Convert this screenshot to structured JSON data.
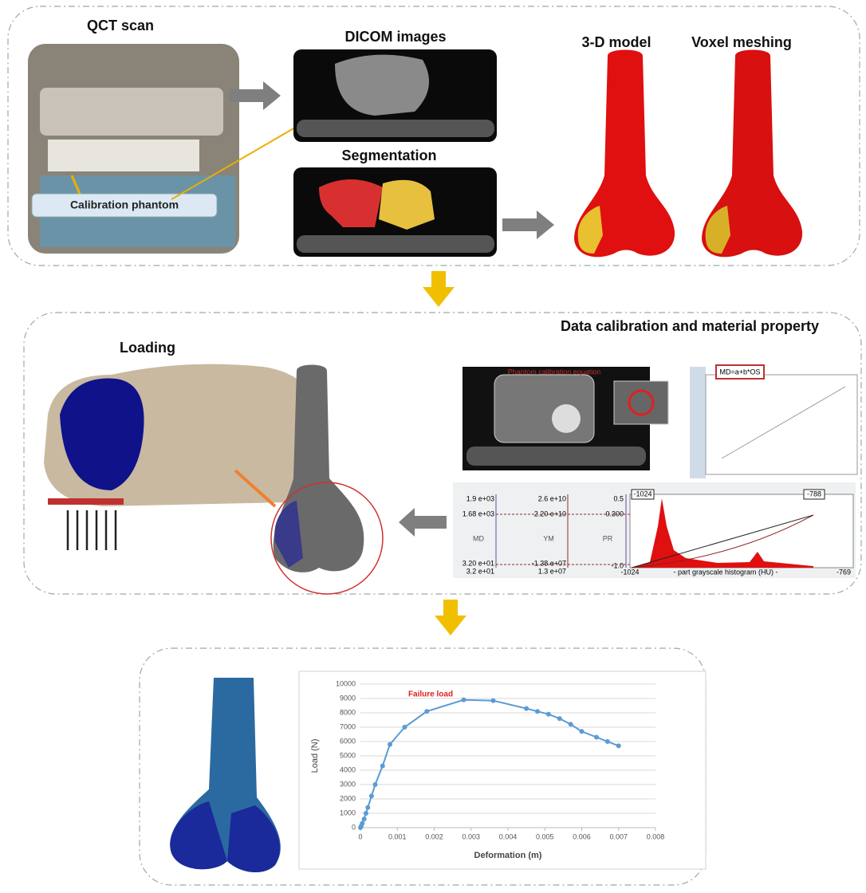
{
  "panel1": {
    "qct_scan": "QCT scan",
    "calibration_phantom": "Calibration phantom",
    "dicom_images": "DICOM images",
    "segmentation": "Segmentation",
    "model_3d": "3-D model",
    "voxel_meshing": "Voxel meshing"
  },
  "panel2": {
    "title": "Data calibration and material property",
    "loading": "Loading",
    "phantom_equation_label": "Phantom calibration equation",
    "phantom_equation": "MD=a+b*OS",
    "histogram": {
      "md_label": "MD",
      "ym_label": "YM",
      "pr_label": "PR",
      "md_ticks": [
        "1.9 e+03",
        "1.68 e+03",
        "3.20 e+01",
        "3.2 e+01"
      ],
      "ym_ticks": [
        "2.6 e+10",
        "2.20 e+10",
        "-1.38 e+07",
        "1.3 e+07"
      ],
      "pr_ticks": [
        "0.5",
        "0.300",
        "-1.0"
      ],
      "range_markers": [
        "-1024",
        "-788"
      ],
      "x_min": "-1024",
      "x_max": "-769",
      "x_label": "- part grayscale histogram (HU) -"
    }
  },
  "chart_data": {
    "type": "line",
    "x_label": "Deformation (m)",
    "y_label": "Load (N)",
    "annotation": "Failure load",
    "x": [
      0,
      2e-05,
      5e-05,
      0.0001,
      0.00015,
      0.0002,
      0.0003,
      0.0004,
      0.0006,
      0.0008,
      0.0012,
      0.0018,
      0.0028,
      0.0036,
      0.0045,
      0.0048,
      0.0051,
      0.0054,
      0.0057,
      0.006,
      0.0064,
      0.0067,
      0.007
    ],
    "values": [
      0,
      100,
      300,
      600,
      1000,
      1400,
      2200,
      3000,
      4300,
      5800,
      7000,
      8100,
      8900,
      8850,
      8300,
      8100,
      7900,
      7600,
      7200,
      6700,
      6300,
      6000,
      5700
    ],
    "color": "#5b9bd5",
    "xlim": [
      0,
      0.008
    ],
    "xticks": [
      0,
      0.001,
      0.002,
      0.003,
      0.004,
      0.005,
      0.006,
      0.007,
      0.008
    ],
    "ylim": [
      0,
      10000
    ],
    "yticks": [
      0,
      1000,
      2000,
      3000,
      4000,
      5000,
      6000,
      7000,
      8000,
      9000,
      10000
    ],
    "grid": true
  }
}
